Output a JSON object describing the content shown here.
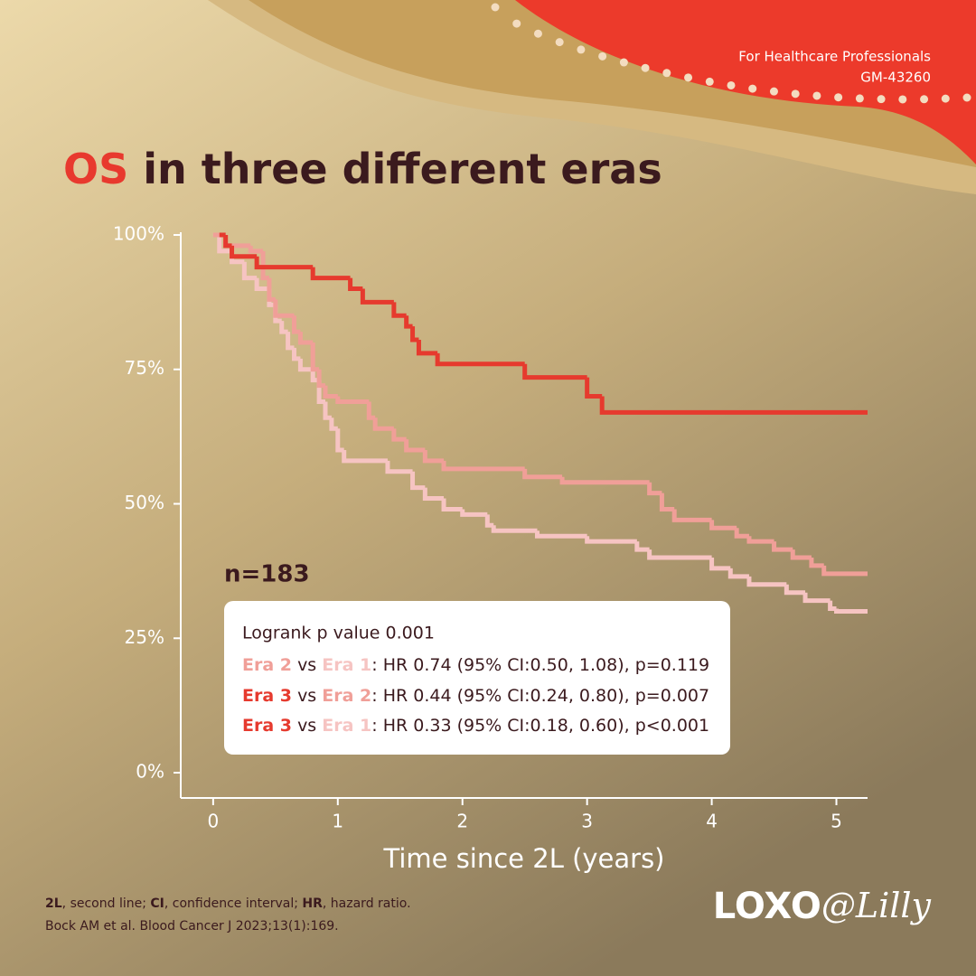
{
  "header": {
    "audience": "For Healthcare Professionals",
    "code": "GM-43260"
  },
  "chart_data": {
    "type": "step",
    "title": [
      "OS",
      "in three different eras"
    ],
    "x_label": "Time since 2L (years)",
    "annotation": "n=183",
    "xlim": [
      -0.26,
      5.25
    ],
    "ylim": [
      -4.7,
      100.5
    ],
    "xticks": [
      0,
      1,
      2,
      3,
      4,
      5
    ],
    "yticks": [
      {
        "value": 0,
        "label": "0%"
      },
      {
        "value": 25,
        "label": "25%"
      },
      {
        "value": 50,
        "label": "50%"
      },
      {
        "value": 75,
        "label": "75%"
      },
      {
        "value": 100,
        "label": "100%"
      }
    ],
    "series": [
      {
        "name": "Era 1",
        "color": "#f6c4c2",
        "x": [
          0,
          0.05,
          0.15,
          0.25,
          0.35,
          0.45,
          0.5,
          0.55,
          0.6,
          0.65,
          0.7,
          0.8,
          0.85,
          0.9,
          0.95,
          1.0,
          1.05,
          1.4,
          1.6,
          1.7,
          1.85,
          2.0,
          2.2,
          2.25,
          2.6,
          3.0,
          3.4,
          3.5,
          4.0,
          4.15,
          4.3,
          4.6,
          4.75,
          4.95,
          5.0,
          5.25
        ],
        "values": [
          100,
          97,
          95,
          92,
          90,
          87,
          84,
          82,
          79,
          77,
          75,
          73,
          69,
          66,
          64,
          60,
          58,
          56,
          53,
          51,
          49,
          48,
          46,
          45,
          44,
          43,
          41.5,
          40,
          38,
          36.5,
          35,
          33.5,
          32,
          30.5,
          30,
          30
        ]
      },
      {
        "name": "Era 2",
        "color": "#f09f98",
        "x": [
          0,
          0.1,
          0.3,
          0.4,
          0.45,
          0.5,
          0.65,
          0.7,
          0.8,
          0.85,
          0.9,
          1.0,
          1.25,
          1.3,
          1.45,
          1.55,
          1.7,
          1.85,
          2.5,
          2.8,
          3.5,
          3.6,
          3.7,
          4.0,
          4.2,
          4.3,
          4.5,
          4.65,
          4.8,
          4.9,
          5.25
        ],
        "values": [
          100,
          98,
          97,
          92,
          88,
          85,
          82,
          80,
          75,
          72,
          70,
          69,
          66,
          64,
          62,
          60,
          58,
          56.5,
          55,
          54,
          52,
          49,
          47,
          45.5,
          44,
          43,
          41.5,
          40,
          38.5,
          37,
          37
        ]
      },
      {
        "name": "Era 3",
        "color": "#e63a2e",
        "x": [
          0.05,
          0.1,
          0.15,
          0.35,
          0.8,
          1.1,
          1.2,
          1.45,
          1.55,
          1.6,
          1.65,
          1.8,
          2.5,
          3.0,
          3.12,
          5.25
        ],
        "values": [
          100,
          98,
          96,
          94,
          92,
          90,
          87.5,
          85,
          83,
          80.5,
          78,
          76,
          73.5,
          70,
          67,
          67
        ]
      }
    ],
    "stats": {
      "logrank": "Logrank p value 0.001",
      "comparisons": [
        {
          "vs": "vs",
          "text": ": HR 0.74 (95% CI:0.50, 1.08), p=0.119"
        },
        {
          "vs": "vs",
          "text": ": HR 0.44 (95% CI:0.24, 0.80), p=0.007"
        },
        {
          "vs": "vs",
          "text": ": HR 0.33 (95% CI:0.18, 0.60), p<0.001"
        }
      ]
    }
  },
  "footnotes": {
    "abbreviations": [
      {
        "term": "2L",
        "def": ", second line; "
      },
      {
        "term": "CI",
        "def": ", confidence interval; "
      },
      {
        "term": "HR",
        "def": ", hazard ratio."
      }
    ],
    "reference": "Bock AM et al. Blood Cancer J 2023;13(1):169."
  },
  "logo": [
    "LOXO",
    "@Lilly"
  ]
}
